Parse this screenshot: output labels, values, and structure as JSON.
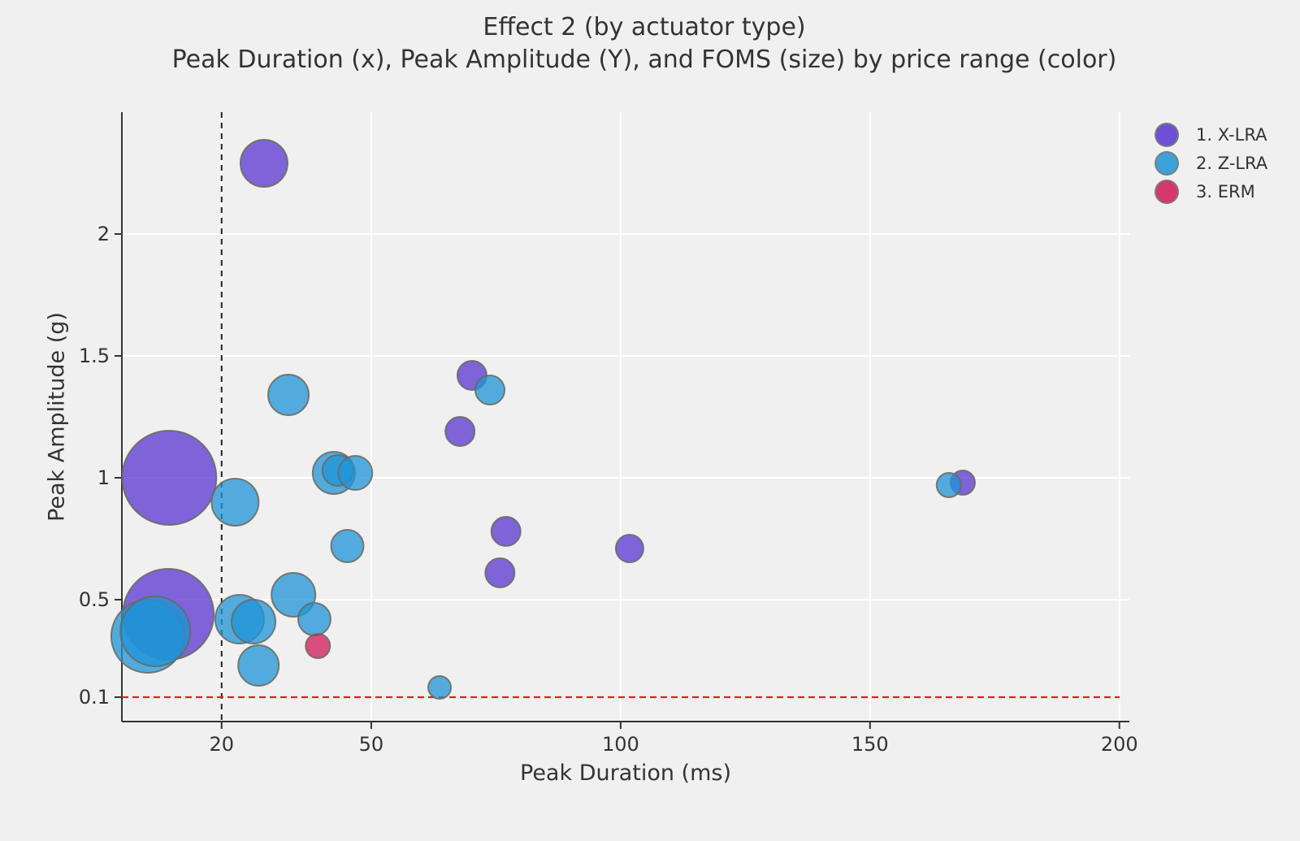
{
  "chart_data": {
    "type": "scatter",
    "variant": "bubble",
    "title": "Effect 2 (by actuator type)",
    "subtitle": "Peak Duration (x), Peak Amplitude (Y), and FOMS (size) by price range (color)",
    "xlabel": "Peak Duration (ms)",
    "ylabel": "Peak Amplitude (g)",
    "xlim": [
      0,
      202
    ],
    "ylim": [
      0,
      2.5
    ],
    "grid": true,
    "x_ticks": [
      {
        "value": 20,
        "label": "20"
      },
      {
        "value": 50,
        "label": "50"
      },
      {
        "value": 100,
        "label": "100"
      },
      {
        "value": 150,
        "label": "150"
      },
      {
        "value": 200,
        "label": "200"
      }
    ],
    "y_ticks": [
      {
        "value": 0.1,
        "label": "0.1"
      },
      {
        "value": 0.5,
        "label": "0.5"
      },
      {
        "value": 1,
        "label": "1"
      },
      {
        "value": 1.5,
        "label": "1.5"
      },
      {
        "value": 2,
        "label": "2"
      }
    ],
    "annotations": {
      "vline": {
        "x": 20,
        "color": "#222222",
        "style": "dashed"
      },
      "hline": {
        "y": 0.1,
        "color": "#e42020",
        "style": "dashed"
      }
    },
    "size_encoding": "FOMS",
    "color_encoding": "price range",
    "legend_position": "upper right outside",
    "series": [
      {
        "name": "1. X-LRA",
        "color": "#5835D0",
        "points": [
          {
            "x": 28.5,
            "y": 2.29,
            "r": 29
          },
          {
            "x": 9.5,
            "y": 1.0,
            "r": 58
          },
          {
            "x": 9.3,
            "y": 0.44,
            "r": 56
          },
          {
            "x": 70.2,
            "y": 1.42,
            "r": 18
          },
          {
            "x": 67.8,
            "y": 1.19,
            "r": 18
          },
          {
            "x": 77.0,
            "y": 0.78,
            "r": 18
          },
          {
            "x": 75.8,
            "y": 0.61,
            "r": 18
          },
          {
            "x": 101.8,
            "y": 0.71,
            "r": 17
          },
          {
            "x": 168.6,
            "y": 0.98,
            "r": 15
          }
        ]
      },
      {
        "name": "2. Z-LRA",
        "color": "#1F94D7",
        "points": [
          {
            "x": 22.7,
            "y": 0.9,
            "r": 29
          },
          {
            "x": 33.4,
            "y": 1.34,
            "r": 25
          },
          {
            "x": 42.5,
            "y": 1.02,
            "r": 26
          },
          {
            "x": 43.3,
            "y": 1.03,
            "r": 19
          },
          {
            "x": 46.8,
            "y": 1.02,
            "r": 21
          },
          {
            "x": 45.2,
            "y": 0.72,
            "r": 20
          },
          {
            "x": 73.8,
            "y": 1.36,
            "r": 18
          },
          {
            "x": 5.2,
            "y": 0.35,
            "r": 45
          },
          {
            "x": 6.7,
            "y": 0.37,
            "r": 43
          },
          {
            "x": 23.6,
            "y": 0.42,
            "r": 30
          },
          {
            "x": 26.4,
            "y": 0.41,
            "r": 27
          },
          {
            "x": 34.4,
            "y": 0.52,
            "r": 27
          },
          {
            "x": 38.6,
            "y": 0.42,
            "r": 20
          },
          {
            "x": 27.4,
            "y": 0.23,
            "r": 25
          },
          {
            "x": 63.7,
            "y": 0.14,
            "r": 14
          },
          {
            "x": 165.8,
            "y": 0.97,
            "r": 15
          }
        ]
      },
      {
        "name": "3. ERM",
        "color": "#D01858",
        "points": [
          {
            "x": 39.3,
            "y": 0.31,
            "r": 15
          }
        ]
      }
    ],
    "style": {
      "background": "#f0f0f0",
      "gridline_color": "#ffffff",
      "spine_color": "#333333",
      "bubble_stroke": "#69695f",
      "bubble_fill_opacity": 0.75,
      "text_color": "#333333"
    }
  },
  "legend": {
    "items": [
      {
        "label": "1. X-LRA",
        "color": "#5835D0"
      },
      {
        "label": "2. Z-LRA",
        "color": "#1F94D7"
      },
      {
        "label": "3. ERM",
        "color": "#D01858"
      }
    ]
  }
}
